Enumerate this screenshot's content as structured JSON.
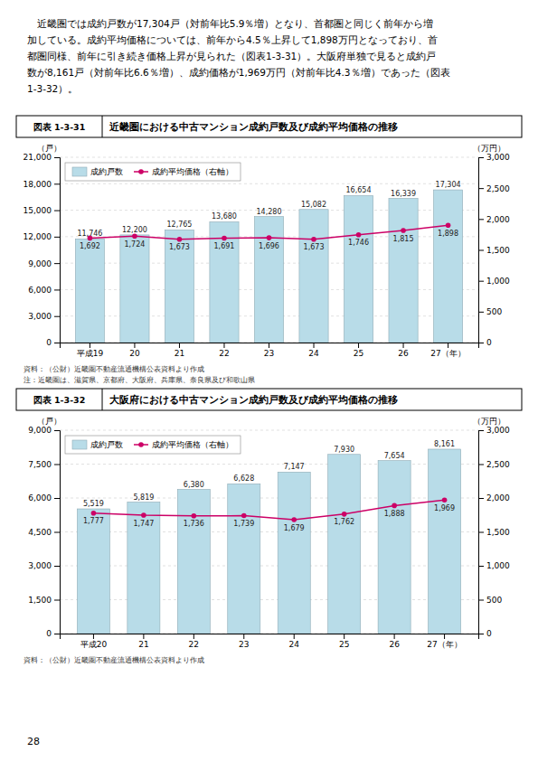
{
  "chart_data": [
    {
      "type": "bar",
      "figure_label": "図表 1-3-31",
      "title": "近畿圏における中古マンション成約戸数及び成約平均価格の推移",
      "categories": [
        "平成19",
        "20",
        "21",
        "22",
        "23",
        "24",
        "25",
        "26",
        "27（年）"
      ],
      "series": [
        {
          "name": "成約戸数",
          "type": "bar",
          "color": "#b8dce8",
          "values": [
            11746,
            12200,
            12765,
            13680,
            14280,
            15082,
            16654,
            16339,
            17304
          ],
          "value_labels": [
            "11,746",
            "12,200",
            "12,765",
            "13,680",
            "14,280",
            "15,082",
            "16,654",
            "16,339",
            "17,304"
          ]
        },
        {
          "name": "成約平均価格（右軸）",
          "type": "line",
          "axis": "y2",
          "color": "#cc0066",
          "marker": "circle",
          "values": [
            1692,
            1724,
            1673,
            1691,
            1696,
            1673,
            1746,
            1815,
            1898
          ],
          "value_labels": [
            "1,692",
            "1,724",
            "1,673",
            "1,691",
            "1,696",
            "1,673",
            "1,746",
            "1,815",
            "1,898"
          ]
        }
      ],
      "ylabel": "（戸）",
      "y2label": "（万円）",
      "ylim": [
        0,
        21000
      ],
      "yticks": [
        0,
        {
          "value": 3000,
          "label": "3,000"
        },
        {
          "value": 6000,
          "label": "6,000"
        },
        {
          "value": 9000,
          "label": "9,000"
        },
        {
          "value": 12000,
          "label": "12,000"
        },
        {
          "value": 15000,
          "label": "15,000"
        },
        {
          "value": 18000,
          "label": "18,000"
        },
        {
          "value": 21000,
          "label": "21,000"
        }
      ],
      "y2lim": [
        0,
        3000
      ],
      "y2ticks": [
        0,
        500,
        {
          "value": 1000,
          "label": "1,000"
        },
        {
          "value": 1500,
          "label": "1,500"
        },
        {
          "value": 2000,
          "label": "2,000"
        },
        {
          "value": 2500,
          "label": "2,500"
        },
        {
          "value": 3000,
          "label": "3,000"
        }
      ],
      "grid": true,
      "legend": "upper left",
      "data_labels": true,
      "source": "資料：（公財）近畿圏不動産流通機構公表資料より作成",
      "note": "注：近畿圏は、滋賀県、京都府、大阪府、兵庫県、奈良県及び和歌山県"
    },
    {
      "type": "bar",
      "figure_label": "図表 1-3-32",
      "title": "大阪府における中古マンション成約戸数及び成約平均価格の推移",
      "categories": [
        "平成20",
        "21",
        "22",
        "23",
        "24",
        "25",
        "26",
        "27（年）"
      ],
      "series": [
        {
          "name": "成約戸数",
          "type": "bar",
          "color": "#b8dce8",
          "values": [
            5519,
            5819,
            6380,
            6628,
            7147,
            7930,
            7654,
            8161
          ],
          "value_labels": [
            "5,519",
            "5,819",
            "6,380",
            "6,628",
            "7,147",
            "7,930",
            "7,654",
            "8,161"
          ]
        },
        {
          "name": "成約平均価格（右軸）",
          "type": "line",
          "axis": "y2",
          "color": "#cc0066",
          "marker": "circle",
          "values": [
            1777,
            1747,
            1736,
            1739,
            1679,
            1762,
            1888,
            1969
          ],
          "value_labels": [
            "1,777",
            "1,747",
            "1,736",
            "1,739",
            "1,679",
            "1,762",
            "1,888",
            "1,969"
          ]
        }
      ],
      "ylabel": "（戸）",
      "y2label": "（万円）",
      "ylim": [
        0,
        9000
      ],
      "yticks": [
        0,
        {
          "value": 1500,
          "label": "1,500"
        },
        {
          "value": 3000,
          "label": "3,000"
        },
        {
          "value": 4500,
          "label": "4,500"
        },
        {
          "value": 6000,
          "label": "6,000"
        },
        {
          "value": 7500,
          "label": "7,500"
        },
        {
          "value": 9000,
          "label": "9,000"
        }
      ],
      "y2lim": [
        0,
        3000
      ],
      "y2ticks": [
        0,
        500,
        {
          "value": 1000,
          "label": "1,000"
        },
        {
          "value": 1500,
          "label": "1,500"
        },
        {
          "value": 2000,
          "label": "2,000"
        },
        {
          "value": 2500,
          "label": "2,500"
        },
        {
          "value": 3000,
          "label": "3,000"
        }
      ],
      "grid": true,
      "legend": "upper left",
      "data_labels": true,
      "source": "資料：（公財）近畿圏不動産流通機構公表資料より作成"
    }
  ],
  "header_text": [
    "　近畿圏では成約戸数が17,304戸（対前年比5.9％増）となり、首都圏と同じく前年から増",
    "加している。成約平均価格については、前年から4.5％上昇して1,898万円となっており、首",
    "都圏同様、前年に引き続き価格上昇が見られた（図表1-3-31）。大阪府単独で見ると成約戸",
    "数が8,161戸（対前年比6.6％増）、成約価格が1,969万円（対前年比4.3％増）であった（図表",
    "1-3-32）。"
  ],
  "page_number": "28"
}
